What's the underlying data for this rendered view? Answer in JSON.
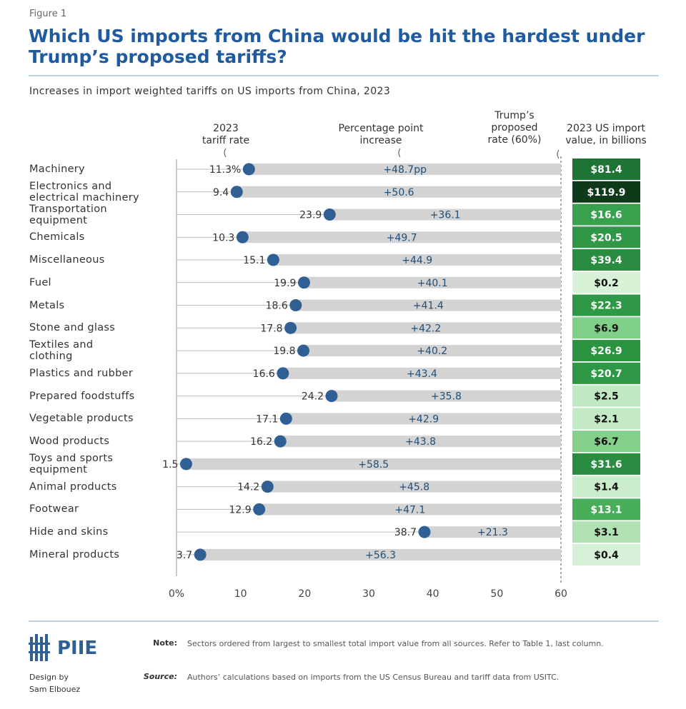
{
  "figure_label": "Figure 1",
  "chart_data": {
    "type": "dotbar",
    "title": "Which US imports from China would be hit the hardest under Trump’s proposed tariffs?",
    "subtitle": "Increases in import weighted tariffs on US imports from China, 2023",
    "annotations": {
      "tariff_header": "2023\ntariff rate",
      "increase_header": "Percentage point\nincrease",
      "proposed_header": "Trump’s\nproposed\nrate (60%)",
      "import_header": "2023 US import\nvalue, in billions"
    },
    "categories": [
      "Machinery",
      "Electronics and\nelectrical machinery",
      "Transportation\nequipment",
      "Chemicals",
      "Miscellaneous",
      "Fuel",
      "Metals",
      "Stone and glass",
      "Textiles and\nclothing",
      "Plastics and rubber",
      "Prepared foodstuffs",
      "Vegetable products",
      "Wood products",
      "Toys and sports\nequipment",
      "Animal products",
      "Footwear",
      "Hide and skins",
      "Mineral products"
    ],
    "series": [
      {
        "name": "2023 tariff rate",
        "color": "#2f5f93",
        "values": [
          11.3,
          9.4,
          23.9,
          10.3,
          15.1,
          19.9,
          18.6,
          17.8,
          19.8,
          16.6,
          24.2,
          17.1,
          16.2,
          1.5,
          14.2,
          12.9,
          38.7,
          3.7
        ],
        "value_labels": [
          "11.3%",
          "9.4",
          "23.9",
          "10.3",
          "15.1",
          "19.9",
          "18.6",
          "17.8",
          "19.8",
          "16.6",
          "24.2",
          "17.1",
          "16.2",
          "1.5",
          "14.2",
          "12.9",
          "38.7",
          "3.7"
        ]
      },
      {
        "name": "Percentage point increase",
        "color": "#d3d3d3",
        "values": [
          48.7,
          50.6,
          36.1,
          49.7,
          44.9,
          40.1,
          41.4,
          42.2,
          40.2,
          43.4,
          35.8,
          42.9,
          43.8,
          58.5,
          45.8,
          47.1,
          21.3,
          56.3
        ],
        "value_labels": [
          "+48.7pp",
          "+50.6",
          "+36.1",
          "+49.7",
          "+44.9",
          "+40.1",
          "+41.4",
          "+42.2",
          "+40.2",
          "+43.4",
          "+35.8",
          "+42.9",
          "+43.8",
          "+58.5",
          "+45.8",
          "+47.1",
          "+21.3",
          "+56.3"
        ]
      },
      {
        "name": "2023 US import value, in billions",
        "values": [
          81.4,
          119.9,
          16.6,
          20.5,
          39.4,
          0.2,
          22.3,
          6.9,
          26.9,
          20.7,
          2.5,
          2.1,
          6.7,
          31.6,
          1.4,
          13.1,
          3.1,
          0.4
        ],
        "value_labels": [
          "$81.4",
          "$119.9",
          "$16.6",
          "$20.5",
          "$39.4",
          "$0.2",
          "$22.3",
          "$6.9",
          "$26.9",
          "$20.7",
          "$2.5",
          "$2.1",
          "$6.7",
          "$31.6",
          "$1.4",
          "$13.1",
          "$3.1",
          "$0.4"
        ],
        "colors": [
          "#1d7434",
          "#0e3a1a",
          "#38a14e",
          "#2e9846",
          "#2a8c40",
          "#d8f2d8",
          "#2e9846",
          "#80cf88",
          "#2b923f",
          "#2e9846",
          "#c0e8c2",
          "#c4eac5",
          "#84d08b",
          "#2a8c40",
          "#cbedcc",
          "#47ad58",
          "#b1e2b4",
          "#d6f1d7"
        ]
      }
    ],
    "xlim": [
      0,
      60
    ],
    "xticks": [
      {
        "value": 0,
        "label": "0%"
      },
      10,
      20,
      30,
      40,
      50,
      60
    ],
    "grid": false
  },
  "footer": {
    "logo": "PIIE",
    "credit": "Design by\nSam Elbouez",
    "note_label": "Note:",
    "note": "Sectors ordered from largest to smallest total import value from all sources. Refer to Table 1, last column.",
    "source_label": "Source:",
    "source": "Authors’ calculations based on imports from the US Census Bureau and tariff data from USITC."
  }
}
